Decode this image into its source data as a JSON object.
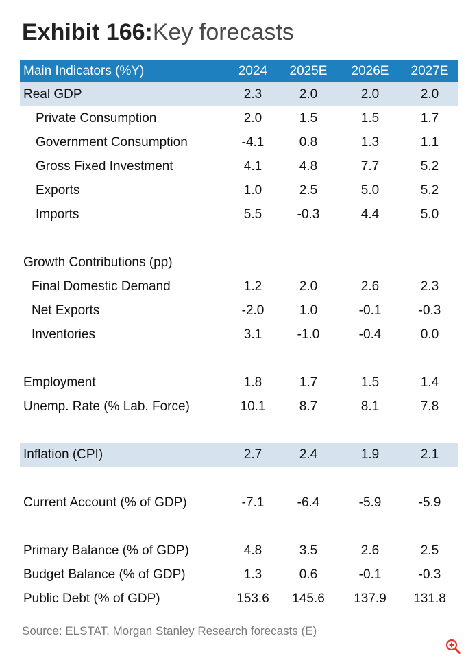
{
  "exhibit": {
    "title_bold": "Exhibit 166:",
    "title_light": "Key forecasts"
  },
  "table": {
    "header": {
      "label": "Main Indicators (%Y)",
      "years": [
        "2024",
        "2025E",
        "2026E",
        "2027E"
      ]
    },
    "rows": [
      {
        "label": "Real GDP",
        "values": [
          "2.3",
          "2.0",
          "2.0",
          "2.0"
        ]
      },
      {
        "label": "Private Consumption",
        "values": [
          "2.0",
          "1.5",
          "1.5",
          "1.7"
        ]
      },
      {
        "label": "Government Consumption",
        "values": [
          "-4.1",
          "0.8",
          "1.3",
          "1.1"
        ]
      },
      {
        "label": "Gross Fixed Investment",
        "values": [
          "4.1",
          "4.8",
          "7.7",
          "5.2"
        ]
      },
      {
        "label": "Exports",
        "values": [
          "1.0",
          "2.5",
          "5.0",
          "5.2"
        ]
      },
      {
        "label": "Imports",
        "values": [
          "5.5",
          "-0.3",
          "4.4",
          "5.0"
        ]
      },
      {
        "label": "Growth Contributions (pp)",
        "values": [
          "",
          "",
          "",
          ""
        ]
      },
      {
        "label": "Final Domestic Demand",
        "values": [
          "1.2",
          "2.0",
          "2.6",
          "2.3"
        ]
      },
      {
        "label": "Net Exports",
        "values": [
          "-2.0",
          "1.0",
          "-0.1",
          "-0.3"
        ]
      },
      {
        "label": "Inventories",
        "values": [
          "3.1",
          "-1.0",
          "-0.4",
          "0.0"
        ]
      },
      {
        "label": "Employment",
        "values": [
          "1.8",
          "1.7",
          "1.5",
          "1.4"
        ]
      },
      {
        "label": "Unemp. Rate (% Lab. Force)",
        "values": [
          "10.1",
          "8.7",
          "8.1",
          "7.8"
        ]
      },
      {
        "label": "Inflation (CPI)",
        "values": [
          "2.7",
          "2.4",
          "1.9",
          "2.1"
        ]
      },
      {
        "label": "Current Account (% of GDP)",
        "values": [
          "-7.1",
          "-6.4",
          "-5.9",
          "-5.9"
        ]
      },
      {
        "label": "Primary Balance (% of GDP)",
        "values": [
          "4.8",
          "3.5",
          "2.6",
          "2.5"
        ]
      },
      {
        "label": "Budget Balance (% of GDP)",
        "values": [
          "1.3",
          "0.6",
          "-0.1",
          "-0.3"
        ]
      },
      {
        "label": "Public Debt (% of GDP)",
        "values": [
          "153.6",
          "145.6",
          "137.9",
          "131.8"
        ]
      }
    ]
  },
  "source": "Source: ELSTAT, Morgan Stanley Research forecasts (E)",
  "colors": {
    "header_bg": "#1f80c0",
    "shaded_bg": "#d6e3ee",
    "zoom_icon": "#e8332a"
  },
  "icons": {
    "zoom": "zoom-in-icon"
  }
}
